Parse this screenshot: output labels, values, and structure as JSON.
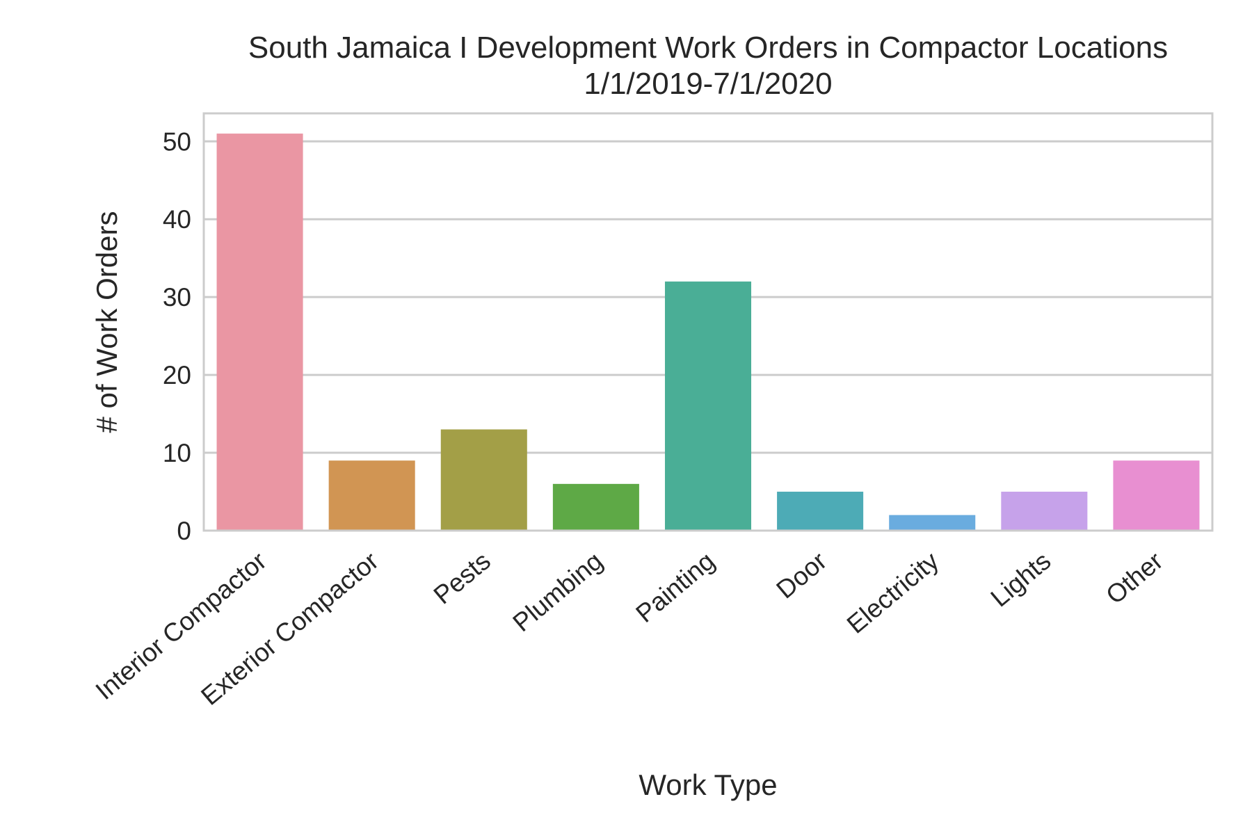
{
  "chart_data": {
    "type": "bar",
    "title": "South Jamaica I Development Work Orders in Compactor Locations",
    "subtitle": "1/1/2019-7/1/2020",
    "xlabel": "Work Type",
    "ylabel": "# of Work Orders",
    "categories": [
      "Interior Compactor",
      "Exterior Compactor",
      "Pests",
      "Plumbing",
      "Painting",
      "Door",
      "Electricity",
      "Lights",
      "Other"
    ],
    "values": [
      51,
      9,
      13,
      6,
      32,
      5,
      2,
      5,
      9
    ],
    "colors": [
      "#ea96a3",
      "#d19553",
      "#a39f47",
      "#5ea946",
      "#4aae96",
      "#4dabb6",
      "#6aacdf",
      "#c6a2ea",
      "#e88fd1"
    ],
    "ylim": [
      0,
      53.6
    ],
    "yticks": [
      0,
      10,
      20,
      30,
      40,
      50
    ],
    "grid": true,
    "legend": "none"
  }
}
